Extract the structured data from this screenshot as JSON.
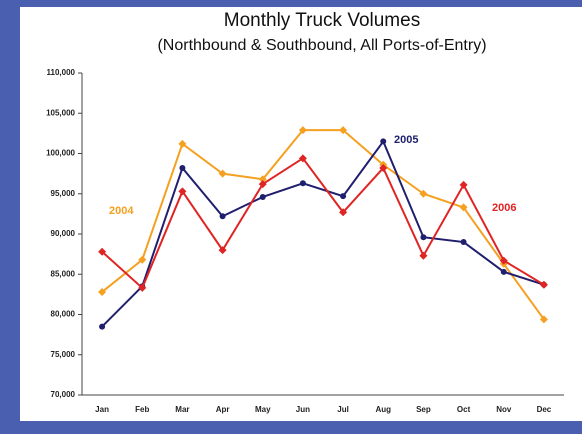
{
  "chart_data": {
    "type": "line",
    "title": "Monthly Truck  Volumes",
    "subtitle": "(Northbound & Southbound, All Ports-of-Entry)",
    "categories": [
      "Jan",
      "Feb",
      "Mar",
      "Apr",
      "May",
      "Jun",
      "Jul",
      "Aug",
      "Sep",
      "Oct",
      "Nov",
      "Dec"
    ],
    "series": [
      {
        "name": "2004",
        "color": "#f5a020",
        "marker": "diamond",
        "values": [
          82800,
          86800,
          101200,
          97500,
          96800,
          102900,
          102900,
          98600,
          95000,
          93300,
          86300,
          79400
        ]
      },
      {
        "name": "2005",
        "color": "#1f1f6e",
        "marker": "circle",
        "values": [
          78500,
          83500,
          98200,
          92200,
          94600,
          96300,
          94700,
          101500,
          89600,
          89000,
          85300,
          83700
        ]
      },
      {
        "name": "2006",
        "color": "#e02424",
        "marker": "diamond",
        "values": [
          87800,
          83300,
          95300,
          88000,
          96200,
          99400,
          92700,
          98200,
          87300,
          96100,
          86700,
          83700
        ]
      }
    ],
    "ylim": [
      70000,
      110000
    ],
    "yticks": [
      {
        "value": 70000,
        "label": "70,000"
      },
      {
        "value": 75000,
        "label": "75,000"
      },
      {
        "value": 80000,
        "label": "80,000"
      },
      {
        "value": 85000,
        "label": "85,000"
      },
      {
        "value": 90000,
        "label": "90,000"
      },
      {
        "value": 95000,
        "label": "95,000"
      },
      {
        "value": 100000,
        "label": "100,000"
      },
      {
        "value": 105000,
        "label": "105,000"
      },
      {
        "value": 110000,
        "label": "110,000"
      }
    ],
    "grid": false
  }
}
